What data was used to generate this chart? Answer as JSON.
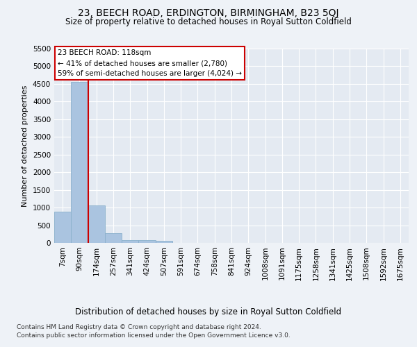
{
  "title": "23, BEECH ROAD, ERDINGTON, BIRMINGHAM, B23 5QJ",
  "subtitle": "Size of property relative to detached houses in Royal Sutton Coldfield",
  "xlabel": "Distribution of detached houses by size in Royal Sutton Coldfield",
  "ylabel": "Number of detached properties",
  "footnote1": "Contains HM Land Registry data © Crown copyright and database right 2024.",
  "footnote2": "Contains public sector information licensed under the Open Government Licence v3.0.",
  "bar_labels": [
    "7sqm",
    "90sqm",
    "174sqm",
    "257sqm",
    "341sqm",
    "424sqm",
    "507sqm",
    "591sqm",
    "674sqm",
    "758sqm",
    "841sqm",
    "924sqm",
    "1008sqm",
    "1091sqm",
    "1175sqm",
    "1258sqm",
    "1341sqm",
    "1425sqm",
    "1508sqm",
    "1592sqm",
    "1675sqm"
  ],
  "bar_values": [
    880,
    4550,
    1060,
    275,
    85,
    80,
    55,
    0,
    0,
    0,
    0,
    0,
    0,
    0,
    0,
    0,
    0,
    0,
    0,
    0,
    0
  ],
  "bar_color": "#aac4e0",
  "bar_edge_color": "#8ab0cc",
  "vline_x": 1.5,
  "vline_color": "#cc0000",
  "ylim": [
    0,
    5500
  ],
  "yticks": [
    0,
    500,
    1000,
    1500,
    2000,
    2500,
    3000,
    3500,
    4000,
    4500,
    5000,
    5500
  ],
  "annotation_text": "23 BEECH ROAD: 118sqm\n← 41% of detached houses are smaller (2,780)\n59% of semi-detached houses are larger (4,024) →",
  "annotation_box_color": "#ffffff",
  "annotation_box_edge": "#cc0000",
  "bg_color": "#eef2f7",
  "plot_bg_color": "#e4eaf2",
  "grid_color": "#ffffff",
  "title_fontsize": 10,
  "subtitle_fontsize": 8.5,
  "ylabel_fontsize": 8,
  "xlabel_fontsize": 8.5,
  "tick_fontsize": 7.5,
  "annot_fontsize": 7.5,
  "footnote_fontsize": 6.5
}
